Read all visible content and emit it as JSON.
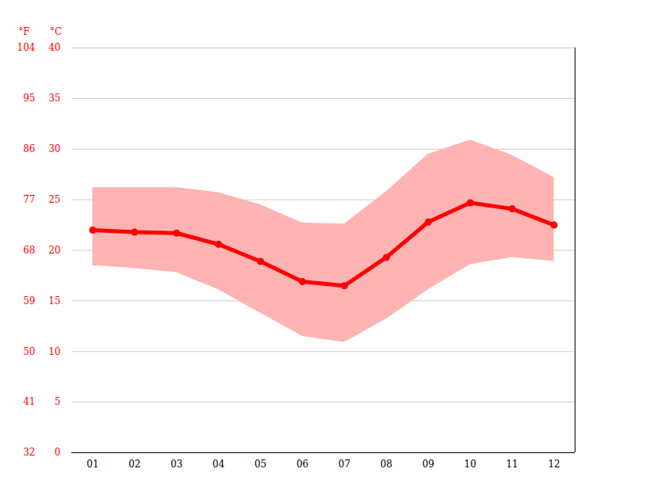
{
  "chart_data": {
    "type": "line",
    "x": [
      1,
      2,
      3,
      4,
      5,
      6,
      7,
      8,
      9,
      10,
      11,
      12
    ],
    "xlim": [
      0.5,
      12.5
    ],
    "xticks": [
      {
        "value": 1,
        "label": "01"
      },
      {
        "value": 2,
        "label": "02"
      },
      {
        "value": 3,
        "label": "03"
      },
      {
        "value": 4,
        "label": "04"
      },
      {
        "value": 5,
        "label": "05"
      },
      {
        "value": 6,
        "label": "06"
      },
      {
        "value": 7,
        "label": "07"
      },
      {
        "value": 8,
        "label": "08"
      },
      {
        "value": 9,
        "label": "09"
      },
      {
        "value": 10,
        "label": "10"
      },
      {
        "value": 11,
        "label": "11"
      },
      {
        "value": 12,
        "label": "12"
      }
    ],
    "ylim": [
      0,
      40
    ],
    "yticks": [
      0,
      5,
      10,
      15,
      20,
      25,
      30,
      35,
      40
    ],
    "ylabel": "°C",
    "y2lim": [
      32,
      104
    ],
    "y2ticks": [
      32,
      41,
      50,
      59,
      68,
      77,
      86,
      95,
      104
    ],
    "y2label": "°F",
    "grid": true,
    "series": [
      {
        "type": "band",
        "color": "#ffb3b3",
        "low": [
          18.5,
          18.2,
          17.8,
          16.1,
          13.8,
          11.5,
          10.9,
          13.2,
          16.1,
          18.6,
          19.3,
          18.9
        ],
        "high": [
          26.2,
          26.2,
          26.2,
          25.7,
          24.5,
          22.7,
          22.6,
          25.8,
          29.5,
          30.9,
          29.4,
          27.2
        ]
      },
      {
        "type": "line",
        "color": "#ff0000",
        "marker": "circle",
        "values": [
          22.0,
          21.8,
          21.7,
          20.6,
          18.9,
          16.9,
          16.5,
          19.3,
          22.8,
          24.7,
          24.1,
          22.5
        ]
      }
    ]
  }
}
